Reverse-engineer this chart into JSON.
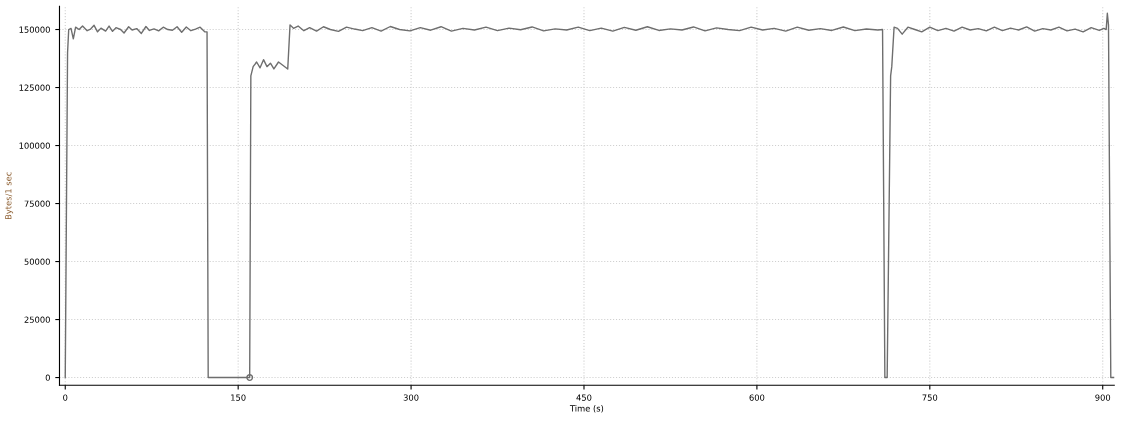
{
  "chart_data": {
    "type": "line",
    "xlabel": "Time (s)",
    "ylabel": "Bytes/1 sec",
    "xlim": [
      -5,
      910
    ],
    "ylim": [
      -3300,
      160000
    ],
    "xticks": [
      0,
      150,
      300,
      450,
      600,
      750,
      900
    ],
    "yticks": [
      0,
      25000,
      50000,
      75000,
      100000,
      125000,
      150000
    ],
    "grid": true,
    "legend": false,
    "marker": "none",
    "line_style": "solid",
    "series": [
      {
        "color": "#6e6e6e",
        "x": [
          0,
          2,
          3,
          5,
          7,
          9,
          12,
          15,
          19,
          22,
          25,
          28,
          31,
          35,
          38,
          41,
          44,
          48,
          51,
          55,
          58,
          62,
          66,
          70,
          73,
          77,
          81,
          85,
          89,
          93,
          97,
          101,
          105,
          109,
          113,
          117,
          121,
          123,
          124,
          140,
          160,
          161,
          163,
          166,
          169,
          172,
          175,
          178,
          181,
          185,
          189,
          193,
          195,
          198,
          202,
          207,
          212,
          218,
          224,
          230,
          237,
          244,
          251,
          258,
          266,
          274,
          282,
          290,
          299,
          308,
          317,
          326,
          335,
          345,
          355,
          365,
          375,
          385,
          395,
          405,
          415,
          425,
          435,
          445,
          455,
          465,
          475,
          485,
          495,
          505,
          515,
          525,
          535,
          545,
          555,
          565,
          575,
          585,
          595,
          605,
          615,
          625,
          635,
          645,
          655,
          665,
          675,
          685,
          695,
          705,
          709,
          711,
          713,
          716,
          717,
          719,
          722,
          726,
          731,
          737,
          743,
          750,
          757,
          764,
          771,
          778,
          785,
          792,
          799,
          806,
          813,
          820,
          827,
          834,
          841,
          848,
          855,
          862,
          869,
          876,
          883,
          890,
          897,
          901,
          903,
          904,
          905,
          907,
          910
        ],
        "values": [
          0,
          140000,
          150000,
          150500,
          146000,
          151000,
          150000,
          151500,
          149500,
          150200,
          151800,
          149000,
          150600,
          149300,
          151500,
          149200,
          150800,
          150000,
          148500,
          151200,
          149800,
          150400,
          148300,
          151300,
          149600,
          150300,
          149400,
          151000,
          150000,
          149700,
          151200,
          148800,
          151100,
          149500,
          150200,
          151000,
          149000,
          149000,
          0,
          0,
          0,
          130000,
          134000,
          136000,
          133500,
          137000,
          134000,
          135500,
          133000,
          136000,
          134500,
          133000,
          152000,
          150500,
          151500,
          149500,
          150800,
          149300,
          151200,
          150000,
          149200,
          151000,
          150200,
          149500,
          150800,
          149300,
          151300,
          150000,
          149400,
          150800,
          149700,
          151200,
          149300,
          150500,
          149800,
          151000,
          149500,
          150600,
          149900,
          151100,
          149400,
          150300,
          149800,
          151000,
          149500,
          150600,
          149300,
          150900,
          149700,
          151200,
          149600,
          150300,
          149800,
          151100,
          149400,
          150700,
          150000,
          149500,
          151000,
          149800,
          150500,
          149300,
          151000,
          149700,
          150400,
          149600,
          151100,
          149500,
          150200,
          149800,
          150000,
          0,
          0,
          130000,
          134000,
          151000,
          150500,
          148000,
          151000,
          150000,
          149000,
          151000,
          149500,
          150500,
          149300,
          151000,
          149800,
          150400,
          149400,
          151000,
          149500,
          150600,
          149800,
          151100,
          149300,
          150400,
          149800,
          151000,
          149400,
          150200,
          149000,
          150800,
          149600,
          150500,
          150000,
          157000,
          152000,
          0,
          0
        ]
      },
      {
        "type": "scatter",
        "color": "#6e6e6e",
        "marker": "circle",
        "x": [
          160
        ],
        "values": [
          0
        ]
      }
    ]
  }
}
